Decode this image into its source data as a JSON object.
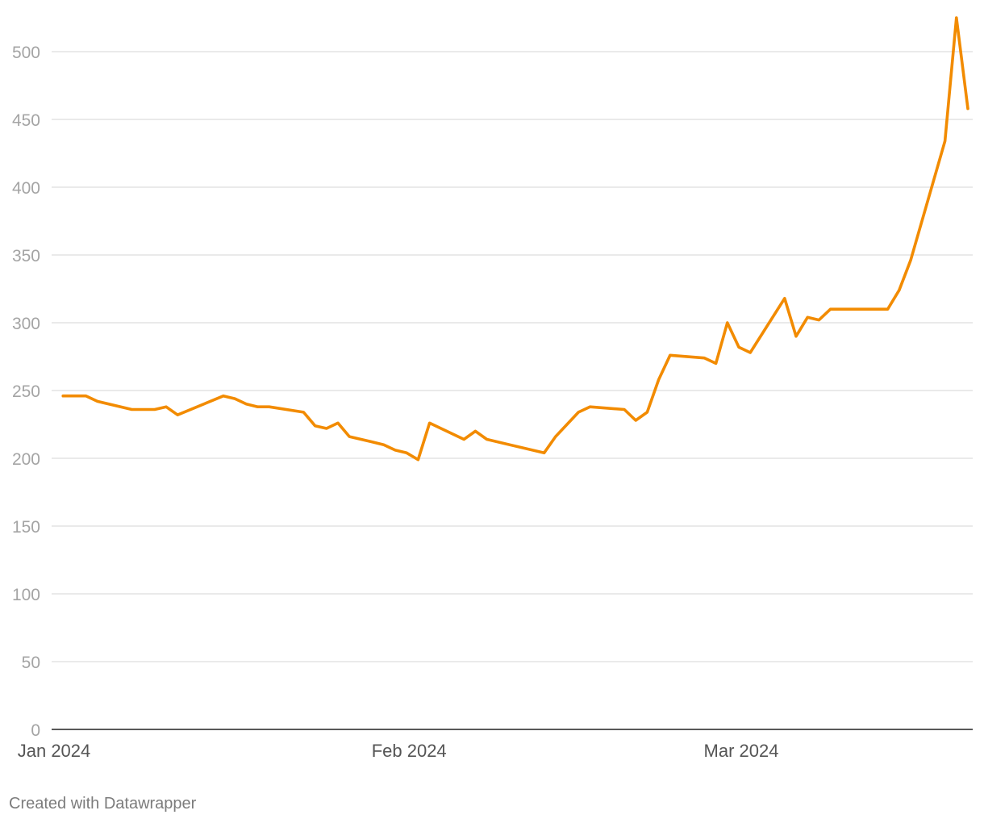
{
  "footer": {
    "credit": "Created with Datawrapper"
  },
  "colors": {
    "line": "#f28b00",
    "grid": "#dedede",
    "axis": "#222222"
  },
  "chart_data": {
    "type": "line",
    "title": "",
    "xlabel": "",
    "ylabel": "",
    "ylim": [
      0,
      525
    ],
    "xlim": [
      "2024-01-01",
      "2024-03-26"
    ],
    "grid": true,
    "yticks": [
      0,
      50,
      100,
      150,
      200,
      250,
      300,
      350,
      400,
      450,
      500
    ],
    "xticks": [
      {
        "date": "2024-01-01",
        "label": "Jan 2024"
      },
      {
        "date": "2024-02-01",
        "label": "Feb 2024"
      },
      {
        "date": "2024-03-01",
        "label": "Mar 2024"
      }
    ],
    "series": [
      {
        "points": [
          [
            "2024-01-02",
            246
          ],
          [
            "2024-01-03",
            246
          ],
          [
            "2024-01-04",
            246
          ],
          [
            "2024-01-05",
            242
          ],
          [
            "2024-01-08",
            236
          ],
          [
            "2024-01-09",
            236
          ],
          [
            "2024-01-10",
            236
          ],
          [
            "2024-01-11",
            238
          ],
          [
            "2024-01-12",
            232
          ],
          [
            "2024-01-16",
            246
          ],
          [
            "2024-01-17",
            244
          ],
          [
            "2024-01-18",
            240
          ],
          [
            "2024-01-19",
            238
          ],
          [
            "2024-01-20",
            238
          ],
          [
            "2024-01-23",
            234
          ],
          [
            "2024-01-24",
            224
          ],
          [
            "2024-01-25",
            222
          ],
          [
            "2024-01-26",
            226
          ],
          [
            "2024-01-27",
            216
          ],
          [
            "2024-01-29",
            212
          ],
          [
            "2024-01-30",
            210
          ],
          [
            "2024-01-31",
            206
          ],
          [
            "2024-02-01",
            204
          ],
          [
            "2024-02-02",
            199
          ],
          [
            "2024-02-03",
            226
          ],
          [
            "2024-02-06",
            214
          ],
          [
            "2024-02-07",
            220
          ],
          [
            "2024-02-08",
            214
          ],
          [
            "2024-02-13",
            204
          ],
          [
            "2024-02-14",
            216
          ],
          [
            "2024-02-16",
            234
          ],
          [
            "2024-02-17",
            238
          ],
          [
            "2024-02-20",
            236
          ],
          [
            "2024-02-21",
            228
          ],
          [
            "2024-02-22",
            234
          ],
          [
            "2024-02-23",
            258
          ],
          [
            "2024-02-24",
            276
          ],
          [
            "2024-02-27",
            274
          ],
          [
            "2024-02-28",
            270
          ],
          [
            "2024-02-29",
            300
          ],
          [
            "2024-03-01",
            282
          ],
          [
            "2024-03-02",
            278
          ],
          [
            "2024-03-05",
            318
          ],
          [
            "2024-03-06",
            290
          ],
          [
            "2024-03-07",
            304
          ],
          [
            "2024-03-08",
            302
          ],
          [
            "2024-03-09",
            310
          ],
          [
            "2024-03-14",
            310
          ],
          [
            "2024-03-15",
            324
          ],
          [
            "2024-03-16",
            346
          ],
          [
            "2024-03-19",
            434
          ],
          [
            "2024-03-20",
            525
          ],
          [
            "2024-03-21",
            458
          ]
        ]
      }
    ]
  }
}
